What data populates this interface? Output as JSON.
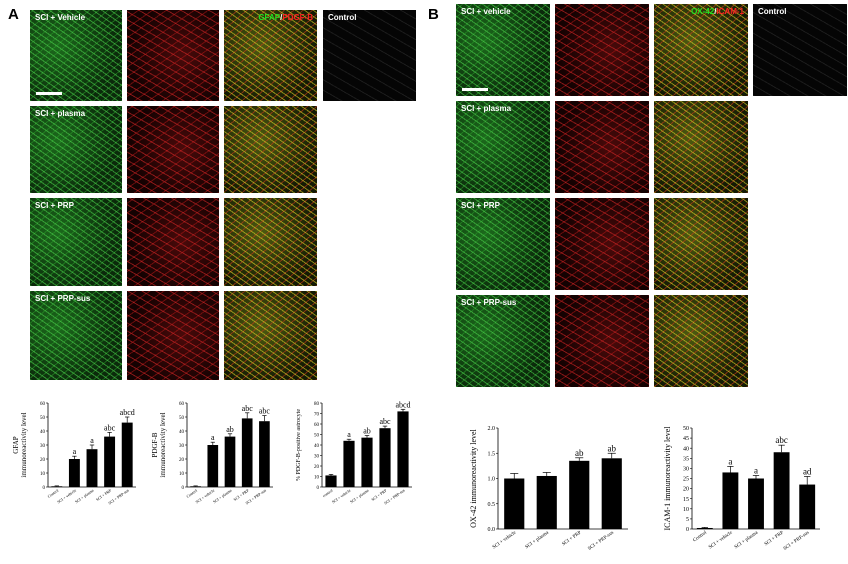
{
  "panels": {
    "A": {
      "letter": "A",
      "rows": [
        {
          "label": "SCI + Vehicle"
        },
        {
          "label": "SCI + plasma"
        },
        {
          "label": "SCI + PRP"
        },
        {
          "label": "SCI + PRP-sus"
        }
      ],
      "merge_label": {
        "green": "GFAP",
        "sep": "/",
        "red": "PDGF-B"
      },
      "control_label": "Control"
    },
    "B": {
      "letter": "B",
      "rows": [
        {
          "label": "SCI + vehicle"
        },
        {
          "label": "SCI + plasma"
        },
        {
          "label": "SCI + PRP"
        },
        {
          "label": "SCI + PRP-sus"
        }
      ],
      "merge_label": {
        "green": "OX-42",
        "sep": "/",
        "red": "ICAM-1"
      },
      "control_label": "Control"
    }
  },
  "colors": {
    "green": "#22e022",
    "red": "#ff2222",
    "bar": "#000000"
  },
  "chart_data": [
    {
      "type": "bar",
      "ylabel_lines": [
        "GFAP",
        "immunoreactivity level"
      ],
      "categories": [
        "Control",
        "SCI + vehicle",
        "SCI + plasma",
        "SCI + PRP",
        "SCI + PRP-sus"
      ],
      "values": [
        0.5,
        20,
        27,
        36,
        46
      ],
      "errors": [
        0.3,
        2,
        3,
        3,
        4
      ],
      "annotations": [
        "",
        "a",
        "a",
        "abc",
        "abcd"
      ],
      "ylim": [
        0,
        60
      ],
      "yticks": [
        0,
        10,
        20,
        30,
        40,
        50,
        60
      ]
    },
    {
      "type": "bar",
      "ylabel_lines": [
        "PDGF-B",
        "immunoreactivity level"
      ],
      "categories": [
        "Control",
        "SCI + vehicle",
        "SCI + plasma",
        "SCI + PRP",
        "SCI + PRP-sus"
      ],
      "values": [
        0.5,
        30,
        36,
        49,
        47
      ],
      "errors": [
        0.3,
        2,
        2,
        4,
        4
      ],
      "annotations": [
        "",
        "a",
        "ab",
        "abc",
        "abc"
      ],
      "ylim": [
        0,
        60
      ],
      "yticks": [
        0,
        10,
        20,
        30,
        40,
        50,
        60
      ]
    },
    {
      "type": "bar",
      "ylabel_lines": [
        "% PDGF-B-positive astrocyte"
      ],
      "categories": [
        "control",
        "SCI + vehicle",
        "SCI + plasma",
        "SCI + PRP",
        "SCI + PRP-sus"
      ],
      "values": [
        11,
        44,
        47,
        56,
        72
      ],
      "errors": [
        1,
        1.5,
        2,
        2,
        2
      ],
      "annotations": [
        "",
        "a",
        "ab",
        "abc",
        "abcd"
      ],
      "ylim": [
        0,
        80
      ],
      "yticks": [
        0,
        10,
        20,
        30,
        40,
        50,
        60,
        70,
        80
      ]
    },
    {
      "type": "bar",
      "ylabel_lines": [
        "OX-42 immunoreactivity level"
      ],
      "categories": [
        "SCI + vehicle",
        "SCI + plasma",
        "SCI + PRP",
        "SCI + PRP-sus"
      ],
      "values": [
        1.0,
        1.05,
        1.35,
        1.4
      ],
      "errors": [
        0.1,
        0.07,
        0.06,
        0.1
      ],
      "annotations": [
        "",
        "",
        "ab",
        "ab"
      ],
      "ylim": [
        0,
        2.0
      ],
      "yticks": [
        0,
        0.5,
        1.0,
        1.5,
        2.0
      ],
      "ytick_labels": [
        "0.0",
        "0.5",
        "1.0",
        "1.5",
        "2.0"
      ]
    },
    {
      "type": "bar",
      "ylabel_lines": [
        "ICAM-1 immunoreactivity level"
      ],
      "categories": [
        "Control",
        "SCI + vehicle",
        "SCI + plasma",
        "SCI + PRP",
        "SCI + PRP-sus"
      ],
      "values": [
        0.5,
        28,
        25,
        38,
        22
      ],
      "errors": [
        0.3,
        3,
        1.5,
        3.5,
        4
      ],
      "annotations": [
        "",
        "a",
        "a",
        "abc",
        "ad"
      ],
      "ylim": [
        0,
        50
      ],
      "yticks": [
        0,
        5,
        10,
        15,
        20,
        25,
        30,
        35,
        40,
        45,
        50
      ]
    }
  ]
}
